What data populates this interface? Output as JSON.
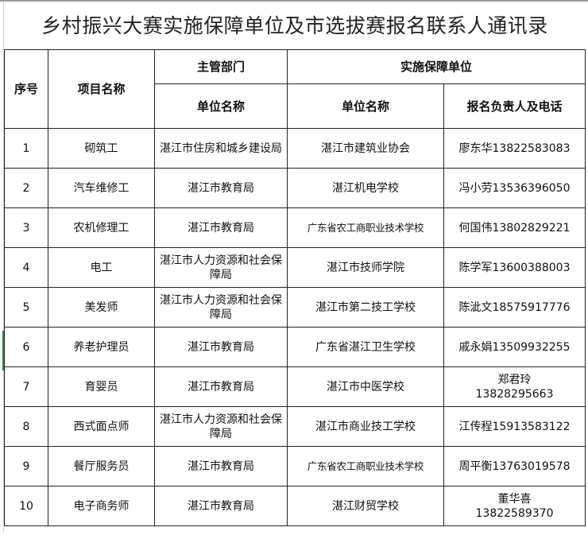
{
  "title": "乡村振兴大赛实施保障单位及市选拔赛报名联系人通讯录",
  "headers": {
    "seq": "序号",
    "project": "项目名称",
    "authority_group": "主管部门",
    "implementer_group": "实施保障单位",
    "authority_unit": "单位名称",
    "implementer_unit": "单位名称",
    "contact": "报名负责人及电话"
  },
  "rows": [
    {
      "seq": "1",
      "project": "砌筑工",
      "authority": "湛江市住房和城乡建设局",
      "implementer": "湛江市建筑业协会",
      "contact_lines": [
        "廖东华13822583083"
      ]
    },
    {
      "seq": "2",
      "project": "汽车维修工",
      "authority": "湛江市教育局",
      "implementer": "湛江机电学校",
      "contact_lines": [
        "冯小劳13536396050"
      ]
    },
    {
      "seq": "3",
      "project": "农机修理工",
      "authority": "湛江市教育局",
      "implementer": "广东省农工商职业技术学校",
      "contact_lines": [
        "何国伟13802829221"
      ]
    },
    {
      "seq": "4",
      "project": "电工",
      "authority": "湛江市人力资源和社会保障局",
      "implementer": "湛江市技师学院",
      "contact_lines": [
        "陈学军13600388003"
      ]
    },
    {
      "seq": "5",
      "project": "美发师",
      "authority": "湛江市人力资源和社会保障局",
      "implementer": "湛江市第二技工学校",
      "contact_lines": [
        "陈泚文18575917776"
      ]
    },
    {
      "seq": "6",
      "project": "养老护理员",
      "authority": "湛江市教育局",
      "implementer": "广东省湛江卫生学校",
      "contact_lines": [
        "戚永娟13509932255"
      ]
    },
    {
      "seq": "7",
      "project": "育婴员",
      "authority": "湛江市教育局",
      "implementer": "湛江市中医学校",
      "contact_lines": [
        "郑君玲",
        "13828295663"
      ]
    },
    {
      "seq": "8",
      "project": "西式面点师",
      "authority": "湛江市人力资源和社会保障局",
      "implementer": "湛江市商业技工学校",
      "contact_lines": [
        "江传程15913583122"
      ]
    },
    {
      "seq": "9",
      "project": "餐厅服务员",
      "authority": "湛江市教育局",
      "implementer": "广东省农工商职业技术学校",
      "contact_lines": [
        "周平衡13763019578"
      ]
    },
    {
      "seq": "10",
      "project": "电子商务师",
      "authority": "湛江市教育局",
      "implementer": "湛江财贸学校",
      "contact_lines": [
        "董华喜",
        "13822589370"
      ]
    }
  ]
}
